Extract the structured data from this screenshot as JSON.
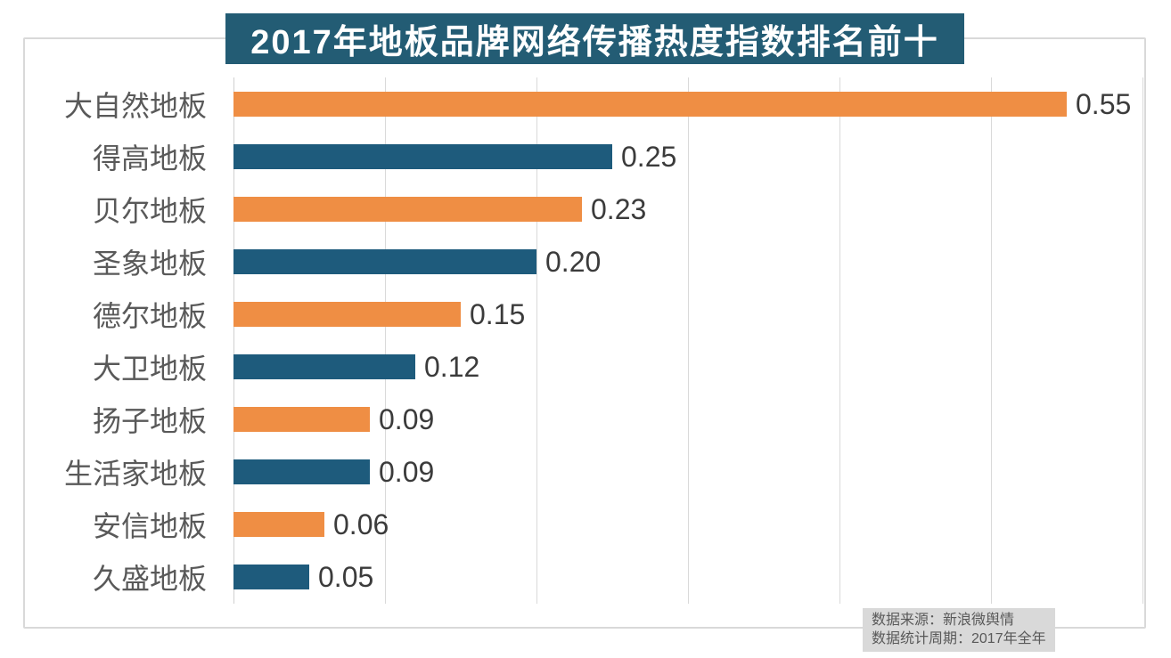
{
  "title": "2017年地板品牌网络传播热度指数排名前十",
  "source_box": {
    "line1": "数据来源：新浪微舆情",
    "line2": "数据统计周期：2017年全年"
  },
  "colors": {
    "banner_bg": "#235c74",
    "bar_orange": "#ef8e44",
    "bar_blue": "#1e5b7c",
    "gridline": "#d9d9d9",
    "frame_border": "#d9d9d9",
    "category_text": "#595959",
    "value_text": "#3b3b3b",
    "source_bg": "#d9d9d9",
    "source_text": "#595959",
    "title_text": "#ffffff"
  },
  "chart_data": {
    "type": "bar",
    "orientation": "horizontal",
    "title": "2017年地板品牌网络传播热度指数排名前十",
    "categories": [
      "大自然地板",
      "得高地板",
      "贝尔地板",
      "圣象地板",
      "德尔地板",
      "大卫地板",
      "扬子地板",
      "生活家地板",
      "安信地板",
      "久盛地板"
    ],
    "values": [
      0.55,
      0.25,
      0.23,
      0.2,
      0.15,
      0.12,
      0.09,
      0.09,
      0.06,
      0.05
    ],
    "value_labels": [
      "0.55",
      "0.25",
      "0.23",
      "0.20",
      "0.15",
      "0.12",
      "0.09",
      "0.09",
      "0.06",
      "0.05"
    ],
    "bar_color_pattern": [
      "#ef8e44",
      "#1e5b7c"
    ],
    "xlabel": "",
    "ylabel": "",
    "xlim": [
      0,
      0.6
    ],
    "gridline_interval": 0.1,
    "grid": true,
    "legend": false,
    "tick_labels_shown": false,
    "annotations": [
      "数据来源：新浪微舆情",
      "数据统计周期：2017年全年"
    ]
  }
}
